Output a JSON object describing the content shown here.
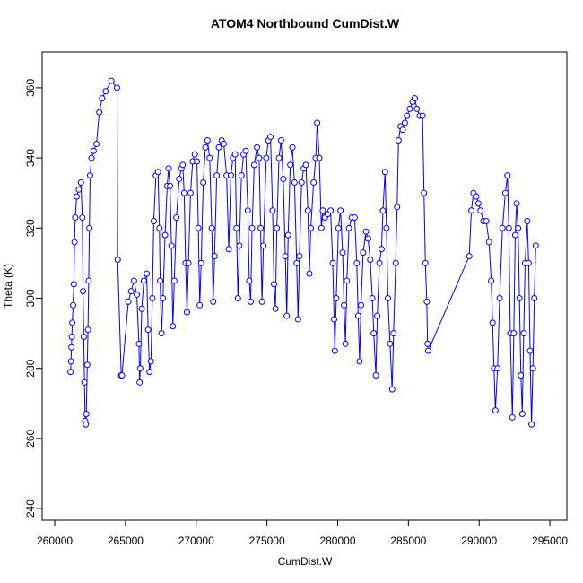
{
  "chart_data": {
    "type": "line",
    "title": "ATOM4 Northbound CumDist.W",
    "x_label": "CumDist.W",
    "y_label": "Theta (K)",
    "color": "#0000ff",
    "markers": true,
    "xlim": [
      259110,
      296200
    ],
    "ylim": [
      236.7,
      370.2
    ],
    "xticks": [
      260000,
      265000,
      270000,
      275000,
      280000,
      285000,
      290000,
      295000
    ],
    "yticks": [
      240,
      260,
      280,
      300,
      320,
      340,
      360
    ],
    "x": [
      261120,
      261150,
      261180,
      261210,
      261240,
      261300,
      261350,
      261400,
      261450,
      261550,
      261700,
      261850,
      261950,
      262000,
      262050,
      262100,
      262150,
      262200,
      262230,
      262300,
      262350,
      262400,
      262450,
      262500,
      262600,
      262750,
      262950,
      263150,
      263350,
      263600,
      264000,
      264400,
      264450,
      264700,
      264750,
      265200,
      265400,
      265600,
      265800,
      265950,
      266000,
      266050,
      266150,
      266300,
      266500,
      266600,
      266700,
      266800,
      266900,
      267000,
      267150,
      267300,
      267400,
      267450,
      267550,
      267650,
      267800,
      267950,
      268050,
      268150,
      268250,
      268350,
      268450,
      268600,
      268800,
      268950,
      269050,
      269150,
      269250,
      269350,
      269450,
      269600,
      269750,
      269900,
      270050,
      270150,
      270250,
      270350,
      270500,
      270650,
      270800,
      270950,
      271100,
      271200,
      271300,
      271450,
      271600,
      271800,
      271950,
      272150,
      272300,
      272450,
      272600,
      272750,
      272850,
      272950,
      273050,
      273200,
      273350,
      273500,
      273650,
      273750,
      273850,
      273950,
      274100,
      274300,
      274450,
      274550,
      274650,
      274750,
      274950,
      275100,
      275250,
      275400,
      275500,
      275600,
      275700,
      275850,
      276000,
      276150,
      276300,
      276400,
      276500,
      276650,
      276800,
      276950,
      277100,
      277200,
      277300,
      277450,
      277600,
      277750,
      277900,
      278000,
      278100,
      278300,
      278450,
      278550,
      278700,
      278850,
      278950,
      279100,
      279300,
      279500,
      279650,
      279750,
      279800,
      279900,
      280050,
      280200,
      280350,
      280450,
      280550,
      280650,
      280800,
      281000,
      281200,
      281350,
      281450,
      281550,
      281650,
      281800,
      282000,
      282150,
      282300,
      282450,
      282550,
      282700,
      282800,
      282950,
      283100,
      283200,
      283350,
      283450,
      283550,
      283700,
      283850,
      283950,
      284100,
      284200,
      284300,
      284450,
      284600,
      284750,
      284900,
      285100,
      285300,
      285450,
      285600,
      285800,
      286000,
      286100,
      286200,
      286300,
      286350,
      286400,
      289300,
      289450,
      289600,
      289800,
      289950,
      290100,
      290300,
      290500,
      290700,
      290850,
      290950,
      291050,
      291150,
      291300,
      291450,
      291650,
      291850,
      292000,
      292100,
      292200,
      292350,
      292450,
      292550,
      292650,
      292750,
      292850,
      292950,
      293050,
      293150,
      293250,
      293400,
      293500,
      293600,
      293700,
      293800,
      293900,
      294000
    ],
    "values": [
      279,
      282,
      286,
      289,
      293,
      298,
      304,
      316,
      323,
      329,
      331,
      333,
      323,
      302,
      289,
      276,
      265,
      264,
      267,
      281,
      291,
      305,
      320,
      335,
      340,
      342,
      344,
      353,
      357,
      359,
      362,
      360,
      311,
      278,
      278,
      299,
      302,
      305,
      301,
      287,
      276,
      280,
      297,
      305,
      307,
      291,
      279,
      282,
      300,
      322,
      335,
      336,
      320,
      305,
      290,
      300,
      318,
      332,
      337,
      332,
      315,
      292,
      305,
      323,
      334,
      337,
      338,
      330,
      310,
      296,
      310,
      330,
      339,
      341,
      339,
      320,
      298,
      310,
      333,
      343,
      345,
      340,
      320,
      299,
      312,
      335,
      343,
      345,
      344,
      335,
      314,
      335,
      340,
      341,
      320,
      300,
      315,
      335,
      341,
      342,
      325,
      305,
      299,
      320,
      338,
      343,
      340,
      320,
      299,
      315,
      340,
      345,
      346,
      325,
      304,
      297,
      320,
      340,
      345,
      334,
      312,
      295,
      318,
      338,
      343,
      333,
      310,
      294,
      312,
      333,
      337,
      338,
      325,
      307,
      320,
      333,
      340,
      350,
      340,
      320,
      325,
      323,
      324,
      325,
      310,
      294,
      285,
      300,
      320,
      325,
      313,
      298,
      287,
      305,
      320,
      323,
      323,
      310,
      295,
      282,
      298,
      313,
      319,
      317,
      311,
      300,
      290,
      278,
      295,
      310,
      314,
      325,
      336,
      320,
      300,
      287,
      274,
      290,
      310,
      326,
      345,
      349,
      348,
      350,
      352,
      354,
      356,
      357,
      354,
      352,
      352,
      330,
      310,
      299,
      287,
      285,
      312,
      325,
      330,
      329,
      327,
      325,
      322,
      322,
      316,
      305,
      293,
      280,
      268,
      280,
      300,
      320,
      330,
      335,
      320,
      290,
      266,
      290,
      318,
      327,
      320,
      300,
      278,
      267,
      290,
      310,
      322,
      310,
      285,
      264,
      280,
      300,
      315
    ]
  }
}
